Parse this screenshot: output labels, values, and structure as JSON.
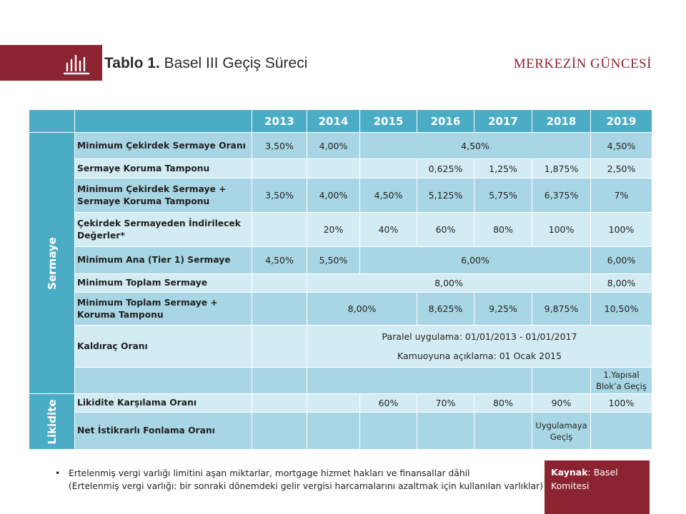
{
  "header": {
    "title_bold": "Tablo 1.",
    "title_rest": " Basel III Geçiş Süreci",
    "brand": "MERKEZİN GÜNCESİ"
  },
  "table": {
    "years": [
      "2013",
      "2014",
      "2015",
      "2016",
      "2017",
      "2018",
      "2019"
    ],
    "group_sermaye": "Sermaye",
    "group_likidite": "Likidite",
    "rows": {
      "r1": {
        "label": "Minimum Çekirdek Sermaye Oranı",
        "c2013": "3,50%",
        "c2014": "4,00%",
        "span": "4,50%",
        "c2019": "4,50%"
      },
      "r2": {
        "label": "Sermaye Koruma Tamponu",
        "c2016": "0,625%",
        "c2017": "1,25%",
        "c2018": "1,875%",
        "c2019": "2,50%"
      },
      "r3": {
        "label": "Minimum Çekirdek Sermaye + Sermaye Koruma Tamponu",
        "c2013": "3,50%",
        "c2014": "4,00%",
        "c2015": "4,50%",
        "c2016": "5,125%",
        "c2017": "5,75%",
        "c2018": "6,375%",
        "c2019": "7%"
      },
      "r4": {
        "label": "Çekirdek Sermayeden İndirilecek Değerler*",
        "c2014": "20%",
        "c2015": "40%",
        "c2016": "60%",
        "c2017": "80%",
        "c2018": "100%",
        "c2019": "100%"
      },
      "r5": {
        "label": "Minimum Ana (Tier 1) Sermaye",
        "c2013": "4,50%",
        "c2014": "5,50%",
        "span": "6,00%",
        "c2019": "6,00%"
      },
      "r6": {
        "label": "Minimum Toplam Sermaye",
        "span": "8,00%",
        "c2019": "8,00%"
      },
      "r7": {
        "label": "Minimum Toplam Sermaye + Koruma Tamponu",
        "span": "8,00%",
        "c2016": "8,625%",
        "c2017": "9,25%",
        "c2018": "9,875%",
        "c2019": "10,50%"
      },
      "r8": {
        "label": "Kaldıraç Oranı",
        "line1": "Paralel uygulama: 01/01/2013  - 01/01/2017",
        "line2": "Kamuoyuna  açıklama: 01 Ocak 2015"
      },
      "r9": {
        "c2018": "1.Yapısal Blok’a Geçiş"
      },
      "r10": {
        "label": "Likidite Karşılama Oranı",
        "c2015": "60%",
        "c2016": "70%",
        "c2017": "80%",
        "c2018": "90%",
        "c2019": "100%"
      },
      "r11": {
        "label": "Net İstikrarlı Fonlama Oranı",
        "c2018": "Uygulamaya Geçiş"
      }
    }
  },
  "footnote": {
    "bullet": "•",
    "line1": "Ertelenmiş vergi varlığı limitini aşan miktarlar, mortgage hizmet hakları ve finansallar dâhil",
    "line2": "(Ertelenmiş vergi varlığı: bir sonraki dönemdeki gelir vergisi harcamalarını azaltmak için kullanılan varlıklar)"
  },
  "source": {
    "label": "Kaynak",
    "colon": ": ",
    "value": "Basel Komitesi"
  },
  "colors": {
    "brand": "#8b2331",
    "table_header": "#4bacc6",
    "row_dark": "#a9d6e4",
    "row_light": "#d3ecf3"
  }
}
